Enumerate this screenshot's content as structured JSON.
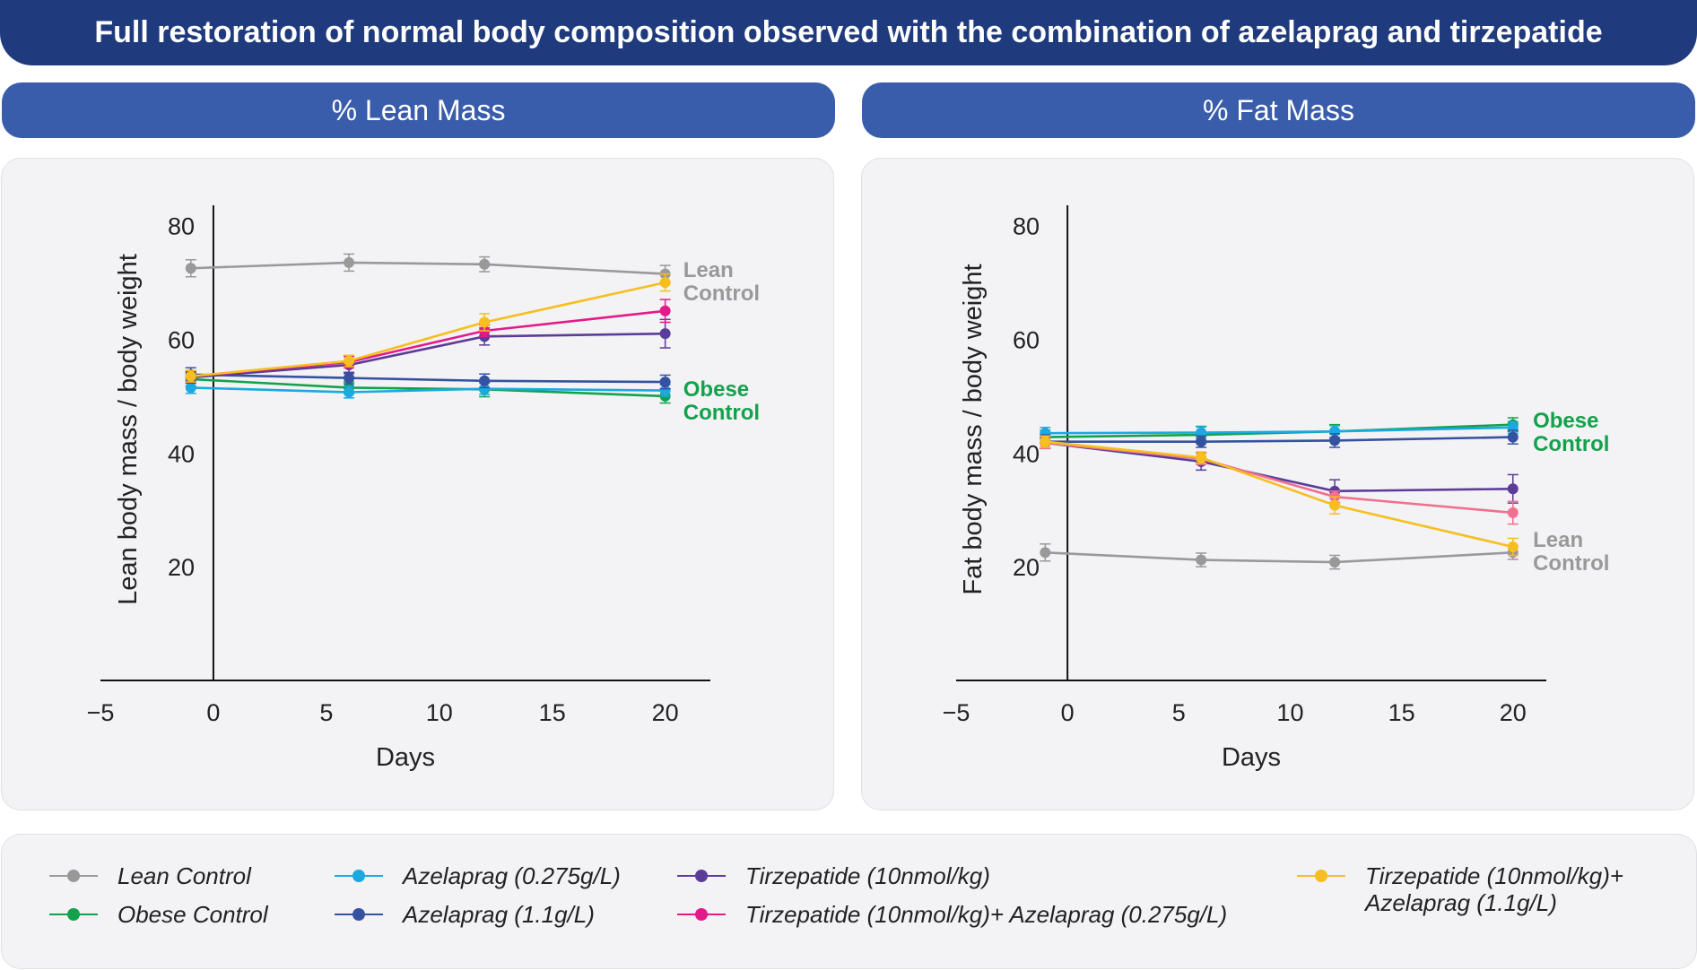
{
  "title": "Full restoration of normal body composition observed with the combination of azelaprag and tirzepatide",
  "panels": {
    "lean_header": "% Lean Mass",
    "fat_header": "% Fat Mass"
  },
  "legend": [
    {
      "label": "Lean Control",
      "color": "#999999"
    },
    {
      "label": "Obese Control",
      "color": "#13a24b"
    },
    {
      "label": "Azelaprag (0.275g/L)",
      "color": "#1aa9e0"
    },
    {
      "label": "Azelaprag (1.1g/L)",
      "color": "#3552a0"
    },
    {
      "label": "Tirzepatide (10nmol/kg)",
      "color": "#5b3c98"
    },
    {
      "label": "Tirzepatide (10nmol/kg)+ Azelaprag (0.275g/L)",
      "color": "#e31a8a"
    },
    {
      "label": "Tirzepatide (10nmol/kg)+",
      "label2": "Azelaprag (1.1g/L)",
      "color": "#f6be1e"
    }
  ],
  "chart_data": [
    {
      "type": "line",
      "title": "% Lean Mass",
      "xlabel": "Days",
      "ylabel": "Lean body mass / body weight",
      "xlim": [
        -5,
        22
      ],
      "ylim": [
        0,
        82
      ],
      "xticks": [
        "−5",
        "0",
        "5",
        "10",
        "15",
        "20"
      ],
      "xtick_values": [
        -5,
        0,
        5,
        10,
        15,
        20
      ],
      "yticks": [
        "20",
        "40",
        "60",
        "80"
      ],
      "ytick_values": [
        20,
        40,
        60,
        80
      ],
      "x": [
        -1,
        6,
        12,
        20
      ],
      "annotations": [
        {
          "lines": [
            "Lean",
            "Control"
          ],
          "color": "#999999",
          "x": 20.8,
          "y": 71
        },
        {
          "lines": [
            "Obese",
            "Control"
          ],
          "color": "#13a24b",
          "x": 20.8,
          "y": 50
        }
      ],
      "series": [
        {
          "name": "Lean Control",
          "color": "#999999",
          "values": [
            72.5,
            73.5,
            73.2,
            71.5
          ],
          "errors": [
            1.5,
            1.5,
            1.3,
            1.5
          ]
        },
        {
          "name": "Obese Control",
          "color": "#13a24b",
          "values": [
            53,
            51.5,
            51.2,
            50
          ],
          "errors": [
            1.2,
            1.0,
            1.3,
            1.2
          ]
        },
        {
          "name": "Azelaprag (0.275g/L)",
          "color": "#1aa9e0",
          "values": [
            51.5,
            50.7,
            51.3,
            51
          ],
          "errors": [
            1.0,
            1.0,
            1.0,
            1.0
          ]
        },
        {
          "name": "Azelaprag (1.1g/L)",
          "color": "#3552a0",
          "values": [
            53.8,
            53.2,
            52.7,
            52.5
          ],
          "errors": [
            1.2,
            1.0,
            1.2,
            1.2
          ]
        },
        {
          "name": "Tirzepatide (10nmol/kg)",
          "color": "#5b3c98",
          "values": [
            53.3,
            55.5,
            60.5,
            61
          ],
          "errors": [
            1.0,
            1.5,
            1.5,
            2.5
          ]
        },
        {
          "name": "Tirzepatide (10nmol/kg)+ Azelaprag (0.275g/L)",
          "color": "#e31a8a",
          "values": [
            53.5,
            56,
            61.5,
            65
          ],
          "errors": [
            1.0,
            1.0,
            1.0,
            2.0
          ]
        },
        {
          "name": "Tirzepatide (10nmol/kg)+ Azelaprag (1.1g/L)",
          "color": "#f6be1e",
          "values": [
            53.5,
            56.2,
            63,
            70
          ],
          "errors": [
            1.0,
            1.0,
            1.5,
            1.5
          ]
        }
      ]
    },
    {
      "type": "line",
      "title": "% Fat Mass",
      "xlabel": "Days",
      "ylabel": "Fat body mass / body weight",
      "xlim": [
        -5,
        21.5
      ],
      "ylim": [
        0,
        82
      ],
      "xticks": [
        "−5",
        "0",
        "5",
        "10",
        "15",
        "20"
      ],
      "xtick_values": [
        -5,
        0,
        5,
        10,
        15,
        20
      ],
      "yticks": [
        "20",
        "40",
        "60",
        "80"
      ],
      "ytick_values": [
        20,
        40,
        60,
        80
      ],
      "x": [
        -1,
        6,
        12,
        20
      ],
      "annotations": [
        {
          "lines": [
            "Obese",
            "Control"
          ],
          "color": "#13a24b",
          "x": 20.9,
          "y": 44.5
        },
        {
          "lines": [
            "Lean",
            "Control"
          ],
          "color": "#999999",
          "x": 20.9,
          "y": 23.5
        }
      ],
      "series": [
        {
          "name": "Lean Control",
          "color": "#999999",
          "values": [
            22.5,
            21.2,
            20.8,
            22.5
          ],
          "errors": [
            1.5,
            1.2,
            1.2,
            1.2
          ]
        },
        {
          "name": "Obese Control",
          "color": "#13a24b",
          "values": [
            42.8,
            43.2,
            43.8,
            45
          ],
          "errors": [
            1.2,
            1.5,
            1.2,
            1.2
          ]
        },
        {
          "name": "Azelaprag (0.275g/L)",
          "color": "#1aa9e0",
          "values": [
            43.5,
            43.6,
            43.8,
            44.5
          ],
          "errors": [
            1.0,
            1.0,
            1.0,
            1.0
          ]
        },
        {
          "name": "Azelaprag (1.1g/L)",
          "color": "#3552a0",
          "values": [
            42,
            42,
            42.2,
            42.8
          ],
          "errors": [
            1.2,
            1.0,
            1.2,
            1.2
          ]
        },
        {
          "name": "Tirzepatide (10nmol/kg)",
          "color": "#5b3c98",
          "values": [
            41.8,
            38.5,
            33.3,
            33.7
          ],
          "errors": [
            1.0,
            1.5,
            2.0,
            2.5
          ]
        },
        {
          "name": "Tirzepatide (10nmol/kg)+ Azelaprag (0.275g/L)",
          "color": "#f07090",
          "values": [
            41.8,
            39,
            32.3,
            29.5
          ],
          "errors": [
            1.0,
            1.0,
            1.0,
            2.0
          ]
        },
        {
          "name": "Tirzepatide (10nmol/kg)+ Azelaprag (1.1g/L)",
          "color": "#f6be1e",
          "values": [
            42,
            39.2,
            30.8,
            23.5
          ],
          "errors": [
            1.0,
            1.0,
            1.5,
            1.5
          ]
        }
      ]
    }
  ]
}
